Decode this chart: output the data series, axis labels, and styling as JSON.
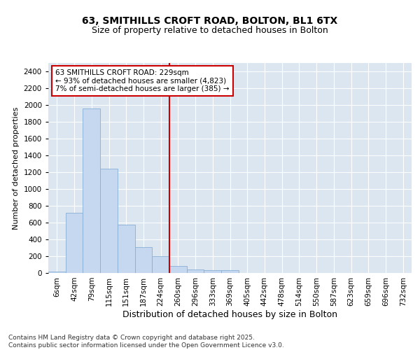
{
  "title1": "63, SMITHILLS CROFT ROAD, BOLTON, BL1 6TX",
  "title2": "Size of property relative to detached houses in Bolton",
  "xlabel": "Distribution of detached houses by size in Bolton",
  "ylabel": "Number of detached properties",
  "bar_labels": [
    "6sqm",
    "42sqm",
    "79sqm",
    "115sqm",
    "151sqm",
    "187sqm",
    "224sqm",
    "260sqm",
    "296sqm",
    "333sqm",
    "369sqm",
    "405sqm",
    "442sqm",
    "478sqm",
    "514sqm",
    "550sqm",
    "587sqm",
    "623sqm",
    "659sqm",
    "696sqm",
    "732sqm"
  ],
  "bar_values": [
    20,
    720,
    1960,
    1240,
    575,
    305,
    200,
    80,
    45,
    35,
    32,
    0,
    0,
    0,
    0,
    0,
    0,
    0,
    0,
    0,
    0
  ],
  "bar_color": "#c5d8f0",
  "bar_edge_color": "#89afd4",
  "vline_x": 6,
  "vline_color": "#cc0000",
  "annotation_text": "63 SMITHILLS CROFT ROAD: 229sqm\n← 93% of detached houses are smaller (4,823)\n7% of semi-detached houses are larger (385) →",
  "annotation_box_facecolor": "#ffffff",
  "annotation_box_edgecolor": "#cc0000",
  "ylim": [
    0,
    2500
  ],
  "yticks": [
    0,
    200,
    400,
    600,
    800,
    1000,
    1200,
    1400,
    1600,
    1800,
    2000,
    2200,
    2400
  ],
  "plot_bg_color": "#dce6f1",
  "fig_bg_color": "#ffffff",
  "grid_color": "#ffffff",
  "footer_text": "Contains HM Land Registry data © Crown copyright and database right 2025.\nContains public sector information licensed under the Open Government Licence v3.0.",
  "title1_fontsize": 10,
  "title2_fontsize": 9,
  "xlabel_fontsize": 9,
  "ylabel_fontsize": 8,
  "tick_fontsize": 7.5,
  "annotation_fontsize": 7.5,
  "footer_fontsize": 6.5
}
